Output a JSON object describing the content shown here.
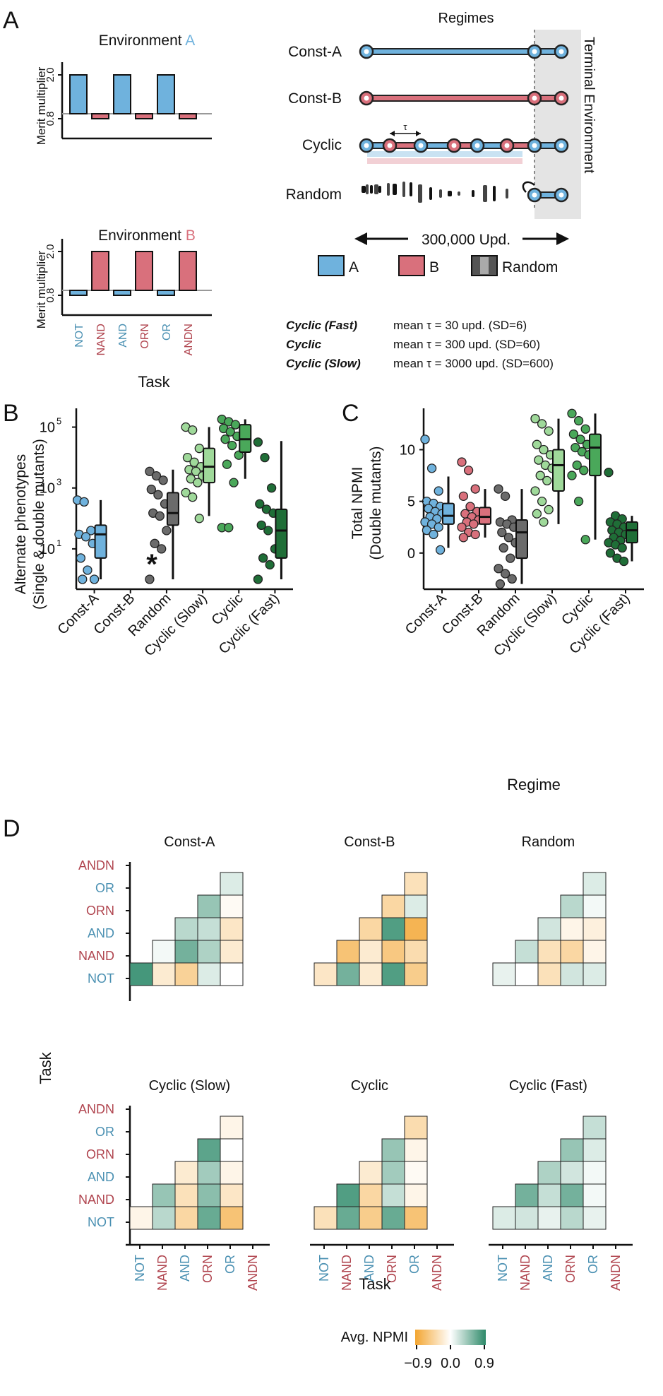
{
  "colors": {
    "envA": "#6fb2dd",
    "envB": "#d9707c",
    "random": "#6b6b6b",
    "cyclic_slow": "#9fd99a",
    "cyclic": "#4aa85a",
    "cyclic_fast": "#1f6e37",
    "taskA_text": "#4a90b2",
    "taskB_text": "#b0454f",
    "heat_neg": "#f3a530",
    "heat_pos": "#2e8a6a"
  },
  "panel_a": {
    "letter": "A",
    "env_a_prefix": "Environment ",
    "env_a_letter": "A",
    "env_b_prefix": "Environment ",
    "env_b_letter": "B",
    "y_label": "Merit multiplier",
    "y_ticks": [
      "0.8",
      "2.0"
    ],
    "x_label": "Task",
    "tasks": [
      "NOT",
      "NAND",
      "AND",
      "ORN",
      "OR",
      "ANDN"
    ],
    "task_groups": [
      "A",
      "B",
      "A",
      "B",
      "A",
      "B"
    ],
    "env_a_values": [
      2.0,
      0.8,
      2.0,
      0.8,
      2.0,
      0.8
    ],
    "env_b_values": [
      0.8,
      2.0,
      0.8,
      2.0,
      0.8,
      2.0
    ],
    "regimes_title": "Regimes",
    "regimes": [
      "Const-A",
      "Const-B",
      "Cyclic",
      "Random"
    ],
    "tau_label": "τ",
    "terminal_label": "Terminal Environment",
    "span_label": "300,000 Upd.",
    "legend": [
      "A",
      "B",
      "Random"
    ],
    "cyclic_notes": [
      {
        "name": "Cyclic (Fast)",
        "text": "mean τ = 30 upd. (SD=6)"
      },
      {
        "name": "Cyclic",
        "text": "mean τ = 300 upd. (SD=60)"
      },
      {
        "name": "Cyclic (Slow)",
        "text": "mean τ = 3000 upd. (SD=600)"
      }
    ]
  },
  "panel_b": {
    "letter": "B",
    "y_label_1": "Alternate phenotypes",
    "y_label_2": "(Single & double mutants)",
    "y_ticks": [
      "10",
      "10",
      "10"
    ],
    "y_tick_exps": [
      "1",
      "3",
      "5"
    ],
    "asterisk": "*",
    "chart_data": {
      "type": "box+strip",
      "yscale": "log10",
      "ylim": [
        1,
        300000
      ],
      "categories": [
        "Const-A",
        "Const-B",
        "Random",
        "Cyclic (Slow)",
        "Cyclic",
        "Cyclic (Fast)"
      ],
      "boxes": [
        {
          "q1": 5,
          "median": 30,
          "q3": 60,
          "low": 1,
          "high": 400
        },
        null,
        {
          "q1": 60,
          "median": 150,
          "q3": 700,
          "low": 1,
          "high": 4000
        },
        {
          "q1": 1500,
          "median": 5000,
          "q3": 20000,
          "low": 120,
          "high": 100000
        },
        {
          "q1": 15000,
          "median": 40000,
          "q3": 120000,
          "low": 2000,
          "high": 180000
        },
        {
          "q1": 5,
          "median": 40,
          "q3": 200,
          "low": 1,
          "high": 35000
        }
      ],
      "points": [
        [
          400,
          350,
          40,
          30,
          25,
          15,
          5,
          2,
          1,
          1
        ],
        [],
        [
          3500,
          2500,
          1800,
          900,
          600,
          300,
          150,
          120,
          40,
          15,
          10,
          1
        ],
        [
          100000,
          80000,
          20000,
          10000,
          7000,
          5000,
          4000,
          3500,
          2500,
          2000,
          1500,
          700,
          500,
          100
        ],
        [
          180000,
          150000,
          120000,
          90000,
          70000,
          50000,
          40000,
          25000,
          12000,
          6000,
          1500,
          50,
          50
        ],
        [
          32000,
          10000,
          1000,
          300,
          200,
          150,
          60,
          40,
          10,
          5,
          3,
          1
        ]
      ]
    }
  },
  "panel_c": {
    "letter": "C",
    "y_label_1": "Total NPMI",
    "y_label_2": "(Double mutants)",
    "y_ticks": [
      "0",
      "5",
      "10"
    ],
    "x_title": "Regime",
    "chart_data": {
      "type": "box+strip",
      "ylim": [
        -3.5,
        14
      ],
      "categories": [
        "Const-A",
        "Const-B",
        "Random",
        "Cyclic (Slow)",
        "Cyclic",
        "Cyclic (Fast)"
      ],
      "boxes": [
        {
          "q1": 2.8,
          "median": 3.6,
          "q3": 4.8,
          "low": 0.5,
          "high": 7.4
        },
        {
          "q1": 2.8,
          "median": 3.5,
          "q3": 4.4,
          "low": 1.5,
          "high": 6.2
        },
        {
          "q1": -0.5,
          "median": 2.0,
          "q3": 3.2,
          "low": -3.0,
          "high": 6.2
        },
        {
          "q1": 6.0,
          "median": 8.5,
          "q3": 10.0,
          "low": 2.8,
          "high": 13.0
        },
        {
          "q1": 7.5,
          "median": 10.2,
          "q3": 11.5,
          "low": 1.3,
          "high": 13.5
        },
        {
          "q1": 1.0,
          "median": 2.2,
          "q3": 3.0,
          "low": -0.8,
          "high": 3.6
        }
      ],
      "points": [
        [
          11.0,
          8.2,
          6.0,
          5.0,
          4.8,
          4.5,
          4.3,
          4.0,
          3.8,
          3.5,
          3.3,
          3.0,
          2.8,
          2.5,
          2.2,
          1.8,
          0.3
        ],
        [
          8.8,
          8.0,
          6.2,
          5.5,
          4.5,
          4.0,
          3.8,
          3.5,
          3.2,
          3.0,
          2.8,
          2.5,
          2.0,
          1.8,
          1.5
        ],
        [
          6.2,
          5.5,
          3.2,
          3.0,
          2.8,
          2.5,
          2.0,
          1.5,
          1.0,
          0.5,
          -0.5,
          -1.5,
          -2.0,
          -2.5,
          -3.0
        ],
        [
          13.0,
          12.5,
          11.8,
          10.5,
          10.0,
          9.5,
          9.0,
          8.5,
          8.2,
          7.5,
          7.0,
          6.0,
          5.0,
          4.2,
          3.8,
          3.0
        ],
        [
          13.5,
          12.8,
          12.0,
          11.5,
          11.0,
          10.5,
          10.2,
          9.8,
          9.5,
          8.5,
          8.0,
          7.5,
          5.0,
          1.3
        ],
        [
          7.8,
          3.6,
          3.3,
          3.0,
          2.8,
          2.5,
          2.2,
          2.0,
          1.8,
          1.5,
          1.2,
          1.0,
          0.8,
          0.5,
          0.0,
          -0.5,
          -0.8
        ]
      ]
    }
  },
  "panel_d": {
    "letter": "D",
    "y_title": "Task",
    "x_title": "Task",
    "tasks": [
      "NOT",
      "NAND",
      "AND",
      "ORN",
      "OR",
      "ANDN"
    ],
    "task_groups": [
      "A",
      "B",
      "A",
      "B",
      "A",
      "B"
    ],
    "legend_title": "Avg. NPMI",
    "legend_ticks": [
      "−0.9",
      "0.0",
      "0.9"
    ],
    "chart_data": {
      "type": "heatmap",
      "value_range": [
        -0.9,
        0.9
      ],
      "matrices": [
        {
          "name": "Const-A",
          "rows": [
            [
              0.15
            ],
            [
              0.45,
              -0.05
            ],
            [
              0.3,
              0.25,
              -0.25
            ],
            [
              0.05,
              0.6,
              0.35,
              -0.2
            ],
            [
              0.8,
              -0.2,
              -0.45,
              0.15,
              0.0
            ]
          ]
        },
        {
          "name": "Const-B",
          "rows": [
            [
              -0.3
            ],
            [
              -0.4,
              0.15
            ],
            [
              -0.4,
              0.75,
              -0.75
            ],
            [
              -0.6,
              -0.2,
              -0.55,
              -0.35
            ],
            [
              -0.25,
              0.6,
              -0.2,
              0.75,
              -0.5
            ]
          ]
        },
        {
          "name": "Random",
          "rows": [
            [
              0.15
            ],
            [
              0.3,
              0.05
            ],
            [
              0.2,
              -0.1,
              -0.15
            ],
            [
              0.25,
              -0.3,
              -0.4,
              -0.1
            ],
            [
              0.1,
              0.0,
              -0.3,
              0.2,
              0.15
            ]
          ]
        },
        {
          "name": "Cyclic (Slow)",
          "rows": [
            [
              -0.1
            ],
            [
              0.7,
              0.0
            ],
            [
              -0.2,
              0.4,
              -0.1
            ],
            [
              0.45,
              -0.3,
              0.5,
              -0.25
            ],
            [
              -0.1,
              0.3,
              -0.4,
              0.65,
              -0.6
            ]
          ]
        },
        {
          "name": "Cyclic",
          "rows": [
            [
              -0.35
            ],
            [
              0.45,
              -0.1
            ],
            [
              -0.2,
              0.4,
              -0.05
            ],
            [
              0.75,
              -0.4,
              0.25,
              -0.1
            ],
            [
              -0.3,
              0.65,
              -0.5,
              0.65,
              -0.6
            ]
          ]
        },
        {
          "name": "Cyclic (Fast)",
          "rows": [
            [
              0.25
            ],
            [
              0.45,
              0.15
            ],
            [
              0.35,
              0.2,
              0.05
            ],
            [
              0.6,
              0.25,
              0.6,
              0.05
            ],
            [
              0.15,
              0.2,
              0.1,
              0.3,
              0.1
            ]
          ]
        }
      ]
    }
  }
}
